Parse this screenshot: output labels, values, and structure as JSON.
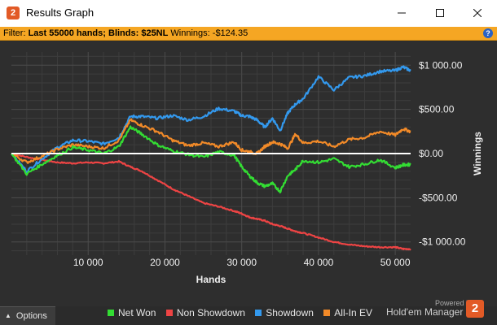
{
  "window": {
    "title": "Results Graph",
    "icon_label": "2",
    "controls": [
      "minimize-icon",
      "maximize-icon",
      "close-icon"
    ]
  },
  "filter": {
    "prefix": "Filter: ",
    "hands_text": "Last 55000 hands;",
    "blinds_text": "Blinds: $25NL",
    "winnings_label": "Winnings:",
    "winnings_value": "-$124.35",
    "help_label": "?"
  },
  "colors": {
    "net_won": "#33dd33",
    "non_showdown": "#ee4444",
    "showdown": "#3399ee",
    "allin_ev": "#f28a28",
    "filter_bar": "#f5a623",
    "brand": "#e25a26"
  },
  "chart_data": {
    "type": "line",
    "title": "",
    "xlabel": "Hands",
    "ylabel": "Winnings",
    "xlim": [
      0,
      52000
    ],
    "ylim": [
      -1150,
      1150
    ],
    "x_ticks": [
      {
        "value": 10000,
        "label": "10 000"
      },
      {
        "value": 20000,
        "label": "20 000"
      },
      {
        "value": 30000,
        "label": "30 000"
      },
      {
        "value": 40000,
        "label": "40 000"
      },
      {
        "value": 50000,
        "label": "50 000"
      }
    ],
    "y_ticks": [
      {
        "value": 1000,
        "label": "$1 000.00"
      },
      {
        "value": 500,
        "label": "$500.00"
      },
      {
        "value": 0,
        "label": "$0.00"
      },
      {
        "value": -500,
        "label": "-$500.00"
      },
      {
        "value": -1000,
        "label": "-$1 000.00"
      }
    ],
    "grid": true,
    "x": [
      0,
      2000,
      4000,
      6000,
      8000,
      10000,
      12000,
      14000,
      15500,
      17000,
      19000,
      21000,
      23000,
      25000,
      27000,
      29000,
      30000,
      31000,
      32000,
      33000,
      34000,
      35000,
      36000,
      37000,
      38000,
      40000,
      42000,
      44000,
      46000,
      48000,
      50000,
      51000,
      52000
    ],
    "series": [
      {
        "name": "Net Won",
        "color_key": "net_won",
        "values": [
          0,
          -230,
          -120,
          -20,
          70,
          40,
          0,
          80,
          300,
          220,
          100,
          30,
          -10,
          -40,
          20,
          -20,
          -150,
          -250,
          -330,
          -370,
          -340,
          -430,
          -250,
          -180,
          -80,
          -100,
          -60,
          -150,
          -120,
          -70,
          -160,
          -130,
          -124
        ]
      },
      {
        "name": "Non Showdown",
        "color_key": "non_showdown",
        "values": [
          0,
          -40,
          -70,
          -100,
          -110,
          -100,
          -110,
          -90,
          -150,
          -200,
          -300,
          -400,
          -480,
          -560,
          -600,
          -650,
          -680,
          -720,
          -740,
          -760,
          -800,
          -820,
          -850,
          -880,
          -900,
          -950,
          -1000,
          -1030,
          -1050,
          -1060,
          -1060,
          -1080,
          -1080
        ]
      },
      {
        "name": "Showdown",
        "color_key": "showdown",
        "values": [
          0,
          -200,
          -60,
          70,
          150,
          140,
          110,
          180,
          420,
          420,
          400,
          430,
          380,
          420,
          510,
          480,
          430,
          420,
          380,
          300,
          400,
          260,
          460,
          560,
          620,
          870,
          720,
          860,
          880,
          930,
          940,
          980,
          940
        ]
      },
      {
        "name": "All-In EV",
        "color_key": "allin_ev",
        "values": [
          0,
          -100,
          -30,
          50,
          100,
          80,
          60,
          150,
          380,
          320,
          250,
          150,
          90,
          120,
          80,
          130,
          40,
          20,
          0,
          80,
          130,
          110,
          60,
          220,
          120,
          140,
          80,
          160,
          180,
          250,
          210,
          280,
          250
        ]
      }
    ]
  },
  "legend": [
    {
      "label": "Net Won",
      "color_key": "net_won"
    },
    {
      "label": "Non Showdown",
      "color_key": "non_showdown"
    },
    {
      "label": "Showdown",
      "color_key": "showdown"
    },
    {
      "label": "All-In EV",
      "color_key": "allin_ev"
    }
  ],
  "footer": {
    "options_label": "Options",
    "powered_by": "Powered by",
    "brand_name": "Hold'em Manager",
    "brand_logo": "2"
  }
}
